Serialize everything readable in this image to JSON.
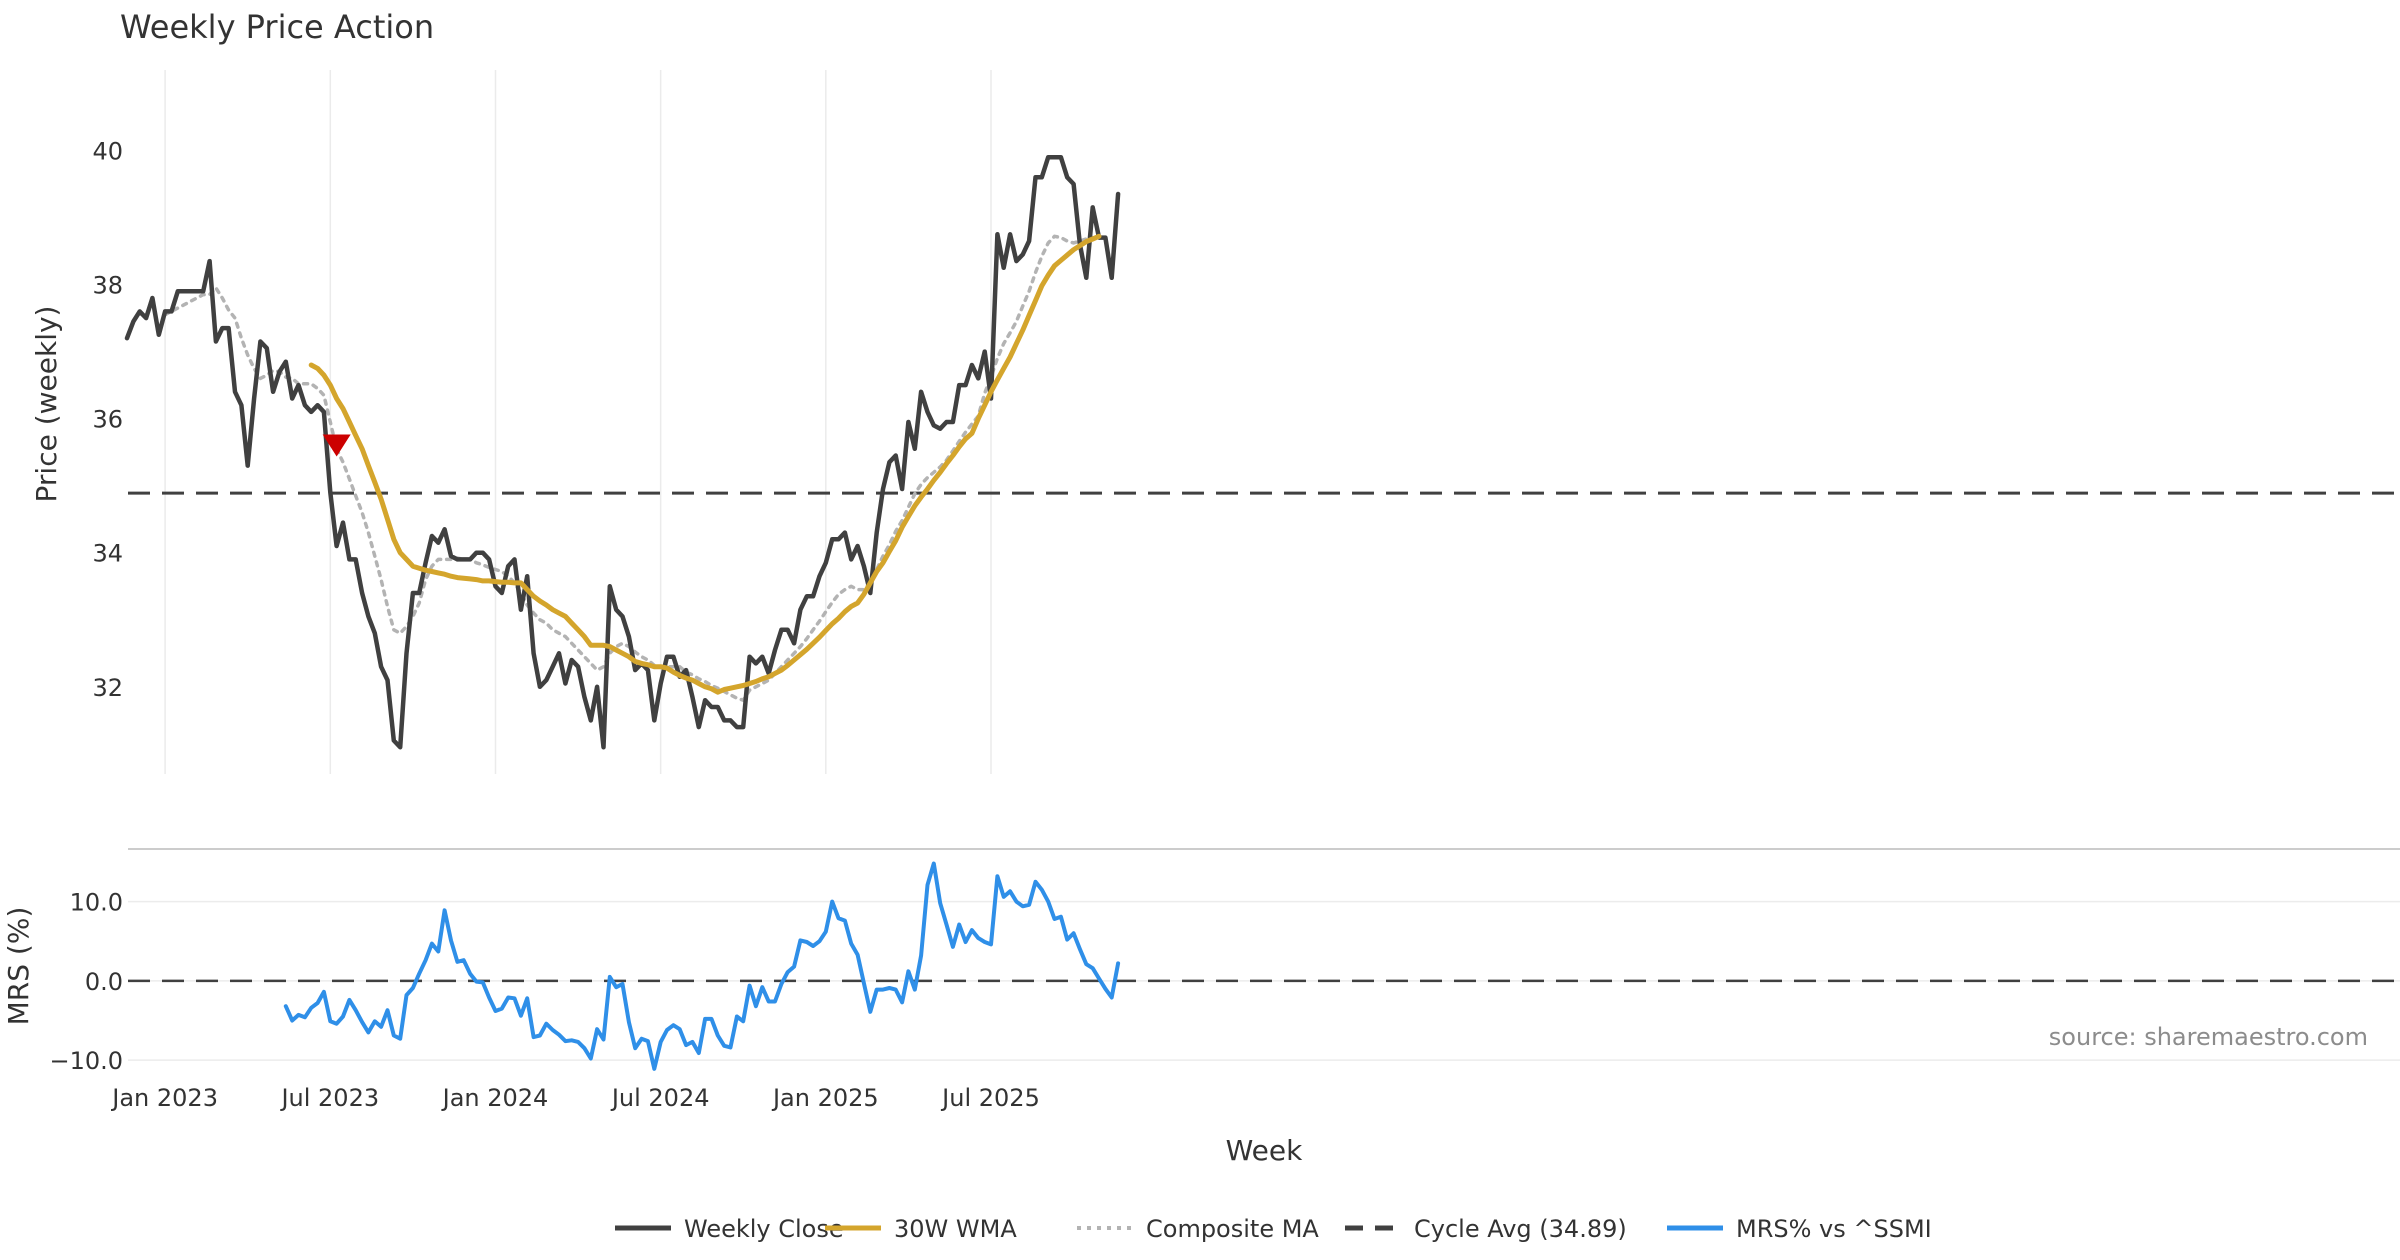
{
  "chart_data": [
    {
      "type": "line",
      "title": "Weekly Price Action",
      "xlabel": "",
      "ylabel": "Price (weekly)",
      "ylim": [
        30.7,
        41.2
      ],
      "yticks": [
        32,
        34,
        36,
        38,
        40
      ],
      "x_start": "2022-11-21",
      "x_step_days": 7,
      "series": [
        {
          "name": "Weekly Close",
          "color": "#404040",
          "style": "solid",
          "values": [
            37.2,
            37.45,
            37.6,
            37.5,
            37.8,
            37.25,
            37.6,
            37.6,
            37.9,
            37.9,
            37.9,
            37.9,
            37.9,
            38.35,
            37.15,
            37.35,
            37.35,
            36.4,
            36.2,
            35.3,
            36.3,
            37.15,
            37.05,
            36.4,
            36.7,
            36.85,
            36.3,
            36.5,
            36.2,
            36.1,
            36.2,
            36.1,
            34.9,
            34.1,
            34.45,
            33.9,
            33.9,
            33.4,
            33.05,
            32.8,
            32.3,
            32.1,
            31.2,
            31.1,
            32.5,
            33.4,
            33.4,
            33.85,
            34.25,
            34.15,
            34.35,
            33.95,
            33.9,
            33.9,
            33.9,
            34.0,
            34.0,
            33.9,
            33.5,
            33.4,
            33.8,
            33.9,
            33.15,
            33.65,
            32.5,
            32.0,
            32.1,
            32.3,
            32.5,
            32.05,
            32.4,
            32.3,
            31.85,
            31.5,
            32.0,
            31.1,
            33.5,
            33.15,
            33.05,
            32.75,
            32.25,
            32.35,
            32.25,
            31.5,
            32.05,
            32.45,
            32.45,
            32.15,
            32.25,
            31.85,
            31.4,
            31.8,
            31.7,
            31.7,
            31.5,
            31.5,
            31.4,
            31.4,
            32.45,
            32.35,
            32.45,
            32.2,
            32.55,
            32.85,
            32.85,
            32.65,
            33.15,
            33.35,
            33.35,
            33.65,
            33.85,
            34.2,
            34.2,
            34.3,
            33.9,
            34.1,
            33.8,
            33.4,
            34.3,
            34.95,
            35.35,
            35.45,
            34.95,
            35.95,
            35.55,
            36.4,
            36.1,
            35.9,
            35.85,
            35.95,
            35.95,
            36.5,
            36.5,
            36.8,
            36.6,
            37.0,
            36.3,
            38.75,
            38.25,
            38.75,
            38.35,
            38.45,
            38.65,
            39.6,
            39.6,
            39.9,
            39.9,
            39.9,
            39.6,
            39.5,
            38.6,
            38.1,
            39.15,
            38.7,
            38.7,
            38.1,
            39.35
          ]
        },
        {
          "name": "30W WMA",
          "color": "#d4a52c",
          "style": "solid",
          "start_index": 29,
          "values": [
            36.8,
            36.75,
            36.65,
            36.5,
            36.3,
            36.15,
            35.95,
            35.75,
            35.55,
            35.3,
            35.05,
            34.8,
            34.5,
            34.2,
            34.0,
            33.9,
            33.8,
            33.77,
            33.74,
            33.72,
            33.7,
            33.68,
            33.65,
            33.63,
            33.62,
            33.61,
            33.6,
            33.58,
            33.58,
            33.57,
            33.56,
            33.56,
            33.55,
            33.55,
            33.45,
            33.35,
            33.28,
            33.22,
            33.15,
            33.1,
            33.05,
            32.95,
            32.85,
            32.75,
            32.62,
            32.62,
            32.62,
            32.6,
            32.55,
            32.5,
            32.45,
            32.38,
            32.35,
            32.33,
            32.3,
            32.3,
            32.28,
            32.22,
            32.17,
            32.13,
            32.1,
            32.05,
            32.0,
            31.97,
            31.92,
            31.96,
            31.98,
            32.0,
            32.02,
            32.05,
            32.08,
            32.12,
            32.15,
            32.2,
            32.25,
            32.32,
            32.4,
            32.48,
            32.56,
            32.65,
            32.74,
            32.84,
            32.94,
            33.02,
            33.12,
            33.2,
            33.25,
            33.38,
            33.55,
            33.72,
            33.85,
            34.02,
            34.18,
            34.38,
            34.54,
            34.7,
            34.83,
            34.95,
            35.08,
            35.2,
            35.33,
            35.45,
            35.58,
            35.7,
            35.78,
            36.0,
            36.2,
            36.4,
            36.58,
            36.75,
            36.92,
            37.12,
            37.32,
            37.54,
            37.76,
            37.98,
            38.14,
            38.28,
            38.36,
            38.44,
            38.52,
            38.58,
            38.64,
            38.68,
            38.72
          ]
        },
        {
          "name": "Composite MA",
          "color": "#b3b3b3",
          "style": "dotted",
          "start_index": 6,
          "values": [
            37.55,
            37.6,
            37.65,
            37.7,
            37.75,
            37.8,
            37.85,
            37.85,
            37.95,
            37.8,
            37.62,
            37.5,
            37.2,
            36.95,
            36.75,
            36.6,
            36.65,
            36.72,
            36.7,
            36.62,
            36.6,
            36.52,
            36.52,
            36.52,
            36.45,
            36.35,
            35.95,
            35.55,
            35.35,
            35.1,
            34.85,
            34.6,
            34.3,
            33.95,
            33.6,
            33.2,
            32.85,
            32.8,
            32.9,
            33.05,
            33.25,
            33.6,
            33.8,
            33.9,
            33.9,
            33.9,
            33.92,
            33.9,
            33.9,
            33.85,
            33.82,
            33.78,
            33.75,
            33.72,
            33.65,
            33.55,
            33.4,
            33.22,
            33.1,
            33.0,
            32.95,
            32.85,
            32.8,
            32.75,
            32.65,
            32.55,
            32.45,
            32.35,
            32.25,
            32.3,
            32.5,
            32.6,
            32.65,
            32.6,
            32.52,
            32.45,
            32.4,
            32.32,
            32.3,
            32.3,
            32.3,
            32.3,
            32.22,
            32.18,
            32.12,
            32.08,
            32.02,
            31.98,
            31.93,
            31.88,
            31.83,
            31.8,
            31.95,
            32.0,
            32.05,
            32.1,
            32.2,
            32.3,
            32.4,
            32.5,
            32.6,
            32.72,
            32.85,
            32.98,
            33.12,
            33.26,
            33.38,
            33.45,
            33.5,
            33.45,
            33.45,
            33.55,
            33.75,
            33.95,
            34.12,
            34.32,
            34.48,
            34.68,
            34.88,
            35.02,
            35.12,
            35.2,
            35.28,
            35.38,
            35.52,
            35.66,
            35.8,
            35.92,
            36.04,
            36.38,
            36.62,
            36.9,
            37.12,
            37.28,
            37.45,
            37.68,
            37.9,
            38.18,
            38.42,
            38.62,
            38.72,
            38.7,
            38.65,
            38.62,
            38.65,
            38.68,
            38.7
          ]
        }
      ],
      "reference_line": {
        "name": "Cycle Avg (34.89)",
        "value": 34.89,
        "color": "#404040",
        "style": "dashed"
      },
      "marker": {
        "shape": "down-triangle",
        "color": "#cc0000",
        "index": 33,
        "value": 35.6
      }
    },
    {
      "type": "line",
      "xlabel": "Week",
      "ylabel": "MRS (%)",
      "ylim": [
        -11.5,
        15.5
      ],
      "yticks": [
        -10.0,
        0.0,
        10.0
      ],
      "ytick_labels": [
        "−10.0",
        "0.0",
        "10.0"
      ],
      "xticks": [
        {
          "label": "Jan 2023",
          "index": 6
        },
        {
          "label": "Jul 2023",
          "index": 32
        },
        {
          "label": "Jan 2024",
          "index": 58
        },
        {
          "label": "Jul 2024",
          "index": 84
        },
        {
          "label": "Jan 2025",
          "index": 110
        },
        {
          "label": "Jul 2025",
          "index": 136
        }
      ],
      "series": [
        {
          "name": "MRS% vs ^SSMI",
          "color": "#2f8fe8",
          "style": "solid",
          "start_index": 25,
          "values": [
            -3.2,
            -5.0,
            -4.3,
            -4.6,
            -3.4,
            -2.8,
            -1.4,
            -5.1,
            -5.4,
            -4.5,
            -2.4,
            -3.7,
            -5.2,
            -6.5,
            -5.1,
            -5.8,
            -3.7,
            -6.9,
            -7.3,
            -1.8,
            -0.9,
            0.9,
            2.6,
            4.7,
            3.7,
            8.9,
            5.1,
            2.4,
            2.6,
            0.9,
            -0.1,
            -0.2,
            -2.1,
            -3.8,
            -3.5,
            -2.1,
            -2.2,
            -4.4,
            -2.2,
            -7.1,
            -6.9,
            -5.4,
            -6.2,
            -6.8,
            -7.6,
            -7.5,
            -7.7,
            -8.5,
            -9.8,
            -6.1,
            -7.4,
            0.5,
            -0.8,
            -0.4,
            -5.2,
            -8.5,
            -7.3,
            -7.6,
            -11.1,
            -7.7,
            -6.2,
            -5.6,
            -6.1,
            -8.1,
            -7.7,
            -9.1,
            -4.8,
            -4.8,
            -6.9,
            -8.2,
            -8.4,
            -4.5,
            -5.1,
            -0.6,
            -3.2,
            -0.8,
            -2.6,
            -2.6,
            -0.4,
            1.1,
            1.8,
            5.1,
            4.9,
            4.4,
            5.0,
            6.2,
            10.0,
            7.9,
            7.6,
            4.7,
            3.3,
            -0.3,
            -3.9,
            -1.1,
            -1.1,
            -0.9,
            -1.1,
            -2.7,
            1.2,
            -1.1,
            3.2,
            12.1,
            14.8,
            9.8,
            7.1,
            4.3,
            7.1,
            4.9,
            6.4,
            5.4,
            4.9,
            4.6,
            13.2,
            10.6,
            11.3,
            10.0,
            9.4,
            9.6,
            12.5,
            11.5,
            10.0,
            7.8,
            8.1,
            5.2,
            6.0,
            4.0,
            2.1,
            1.6,
            0.3,
            -1.0,
            -2.1,
            2.2
          ]
        }
      ],
      "reference_line": {
        "value": 0.0,
        "color": "#404040",
        "style": "dashed"
      },
      "annotation": "source: sharemaestro.com"
    }
  ],
  "legend": {
    "placement": "bottom-center",
    "items": [
      {
        "label": "Weekly Close",
        "color": "#404040",
        "style": "solid"
      },
      {
        "label": "30W WMA",
        "color": "#d4a52c",
        "style": "solid"
      },
      {
        "label": "Composite MA",
        "color": "#b3b3b3",
        "style": "dotted"
      },
      {
        "label": "Cycle Avg (34.89)",
        "color": "#404040",
        "style": "dashed"
      },
      {
        "label": "MRS% vs ^SSMI",
        "color": "#2f8fe8",
        "style": "solid"
      }
    ]
  }
}
